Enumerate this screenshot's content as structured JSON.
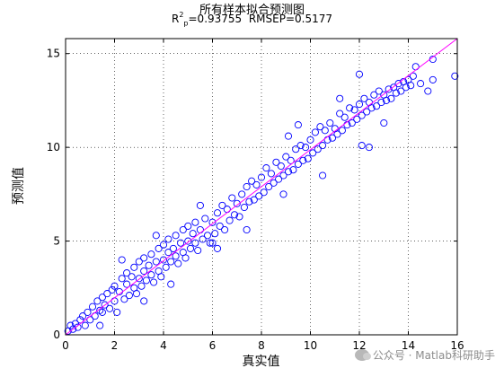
{
  "chart_data": {
    "type": "scatter",
    "title": "所有样本拟合预测图",
    "subtitle": {
      "r_label": "R",
      "r_sup": "2",
      "r_sub": "p",
      "r_value": "=0.93755",
      "rmsep": "RMSEP=0.5177"
    },
    "xlabel": "真实值",
    "ylabel": "预测值",
    "xlim": [
      0,
      16
    ],
    "ylim": [
      0,
      15.8
    ],
    "xticks": [
      0,
      2,
      4,
      6,
      8,
      10,
      12,
      14,
      16
    ],
    "yticks": [
      0,
      5,
      10,
      15
    ],
    "grid": true,
    "grid_style": "dotted",
    "marker": "open circle",
    "point_color": "#0000ff",
    "reference_line": {
      "from": [
        0,
        0
      ],
      "to": [
        16,
        15.8
      ],
      "color": "#ff00ff"
    },
    "series": [
      {
        "points": [
          [
            0.1,
            0.2
          ],
          [
            0.2,
            0.5
          ],
          [
            0.3,
            0.3
          ],
          [
            0.4,
            0.6
          ],
          [
            0.5,
            0.4
          ],
          [
            0.6,
            0.8
          ],
          [
            0.7,
            1.0
          ],
          [
            0.8,
            0.5
          ],
          [
            0.9,
            1.2
          ],
          [
            1.0,
            0.8
          ],
          [
            1.1,
            1.5
          ],
          [
            1.2,
            1.0
          ],
          [
            1.3,
            1.8
          ],
          [
            1.4,
            1.3
          ],
          [
            1.5,
            2.0
          ],
          [
            1.5,
            1.2
          ],
          [
            1.6,
            1.6
          ],
          [
            1.7,
            2.2
          ],
          [
            1.8,
            1.4
          ],
          [
            1.9,
            2.4
          ],
          [
            2.0,
            1.8
          ],
          [
            2.0,
            2.6
          ],
          [
            2.1,
            1.2
          ],
          [
            2.2,
            2.3
          ],
          [
            2.3,
            3.0
          ],
          [
            2.4,
            1.9
          ],
          [
            2.5,
            2.7
          ],
          [
            2.5,
            3.3
          ],
          [
            2.6,
            2.1
          ],
          [
            2.7,
            3.1
          ],
          [
            2.8,
            2.5
          ],
          [
            2.8,
            3.6
          ],
          [
            2.9,
            2.2
          ],
          [
            3.0,
            3.0
          ],
          [
            3.0,
            3.9
          ],
          [
            3.1,
            2.6
          ],
          [
            3.2,
            3.4
          ],
          [
            3.2,
            4.1
          ],
          [
            3.3,
            2.9
          ],
          [
            3.4,
            3.7
          ],
          [
            3.5,
            3.2
          ],
          [
            3.5,
            4.3
          ],
          [
            3.6,
            2.8
          ],
          [
            3.7,
            3.9
          ],
          [
            3.8,
            3.4
          ],
          [
            3.8,
            4.6
          ],
          [
            3.9,
            3.1
          ],
          [
            4.0,
            4.0
          ],
          [
            4.0,
            4.8
          ],
          [
            4.1,
            3.6
          ],
          [
            4.2,
            4.4
          ],
          [
            4.2,
            5.1
          ],
          [
            4.3,
            3.9
          ],
          [
            4.4,
            4.6
          ],
          [
            4.5,
            4.2
          ],
          [
            4.5,
            5.3
          ],
          [
            4.6,
            3.8
          ],
          [
            4.7,
            4.9
          ],
          [
            4.8,
            4.4
          ],
          [
            4.8,
            5.6
          ],
          [
            4.9,
            4.1
          ],
          [
            5.0,
            5.0
          ],
          [
            5.0,
            5.8
          ],
          [
            5.1,
            4.6
          ],
          [
            5.2,
            5.4
          ],
          [
            5.3,
            4.9
          ],
          [
            5.3,
            6.0
          ],
          [
            5.4,
            4.5
          ],
          [
            5.5,
            5.6
          ],
          [
            5.6,
            5.1
          ],
          [
            5.7,
            6.2
          ],
          [
            5.8,
            5.3
          ],
          [
            5.9,
            4.9
          ],
          [
            6.0,
            6.0
          ],
          [
            6.1,
            5.4
          ],
          [
            6.2,
            6.5
          ],
          [
            6.3,
            5.8
          ],
          [
            6.4,
            6.9
          ],
          [
            6.5,
            5.6
          ],
          [
            6.6,
            6.7
          ],
          [
            6.7,
            6.1
          ],
          [
            6.8,
            7.3
          ],
          [
            6.9,
            6.4
          ],
          [
            7.0,
            7.0
          ],
          [
            7.1,
            6.3
          ],
          [
            7.2,
            7.5
          ],
          [
            7.3,
            6.8
          ],
          [
            7.4,
            7.9
          ],
          [
            7.5,
            7.1
          ],
          [
            7.6,
            8.2
          ],
          [
            7.7,
            7.2
          ],
          [
            7.8,
            8.0
          ],
          [
            7.9,
            7.4
          ],
          [
            8.0,
            8.4
          ],
          [
            8.1,
            7.6
          ],
          [
            8.2,
            8.9
          ],
          [
            8.3,
            7.9
          ],
          [
            8.4,
            8.6
          ],
          [
            8.5,
            8.1
          ],
          [
            8.6,
            9.2
          ],
          [
            8.7,
            8.3
          ],
          [
            8.8,
            9.0
          ],
          [
            8.9,
            8.5
          ],
          [
            9.0,
            9.5
          ],
          [
            9.1,
            8.7
          ],
          [
            9.2,
            9.3
          ],
          [
            9.3,
            8.8
          ],
          [
            9.4,
            9.9
          ],
          [
            9.5,
            9.1
          ],
          [
            9.6,
            10.1
          ],
          [
            9.7,
            9.3
          ],
          [
            9.8,
            10.0
          ],
          [
            9.9,
            9.4
          ],
          [
            10.0,
            10.4
          ],
          [
            10.1,
            9.7
          ],
          [
            10.2,
            10.8
          ],
          [
            10.3,
            9.9
          ],
          [
            10.4,
            11.1
          ],
          [
            10.5,
            10.1
          ],
          [
            10.6,
            10.9
          ],
          [
            10.7,
            10.4
          ],
          [
            10.8,
            11.3
          ],
          [
            10.9,
            10.5
          ],
          [
            11.0,
            11.0
          ],
          [
            11.1,
            10.7
          ],
          [
            11.2,
            11.8
          ],
          [
            11.3,
            10.9
          ],
          [
            11.4,
            11.6
          ],
          [
            11.5,
            11.2
          ],
          [
            11.6,
            12.1
          ],
          [
            11.7,
            11.3
          ],
          [
            11.8,
            12.0
          ],
          [
            11.9,
            11.5
          ],
          [
            12.0,
            12.3
          ],
          [
            12.1,
            11.7
          ],
          [
            12.2,
            12.6
          ],
          [
            12.3,
            11.9
          ],
          [
            12.4,
            12.4
          ],
          [
            12.5,
            12.1
          ],
          [
            12.6,
            12.8
          ],
          [
            12.7,
            12.2
          ],
          [
            12.8,
            13.0
          ],
          [
            12.9,
            12.4
          ],
          [
            13.0,
            12.8
          ],
          [
            13.1,
            12.5
          ],
          [
            13.2,
            13.1
          ],
          [
            13.3,
            12.6
          ],
          [
            13.4,
            13.2
          ],
          [
            13.5,
            12.9
          ],
          [
            13.6,
            13.4
          ],
          [
            13.7,
            13.0
          ],
          [
            13.8,
            13.5
          ],
          [
            13.9,
            13.2
          ],
          [
            14.0,
            13.6
          ],
          [
            14.1,
            13.3
          ],
          [
            14.2,
            13.8
          ],
          [
            14.5,
            13.4
          ],
          [
            14.8,
            13.0
          ],
          [
            15.0,
            13.6
          ],
          [
            15.9,
            13.8
          ],
          [
            2.3,
            4.0
          ],
          [
            3.2,
            1.8
          ],
          [
            4.3,
            2.7
          ],
          [
            5.5,
            6.9
          ],
          [
            6.2,
            4.6
          ],
          [
            7.4,
            5.6
          ],
          [
            9.1,
            10.6
          ],
          [
            10.5,
            8.5
          ],
          [
            11.2,
            12.6
          ],
          [
            12.1,
            10.1
          ],
          [
            12.4,
            10.0
          ],
          [
            12.0,
            13.9
          ],
          [
            14.3,
            14.3
          ],
          [
            15.0,
            14.7
          ],
          [
            13.0,
            11.3
          ],
          [
            9.5,
            11.2
          ],
          [
            6.0,
            4.9
          ],
          [
            8.9,
            7.5
          ],
          [
            3.7,
            5.3
          ],
          [
            1.4,
            0.5
          ]
        ]
      }
    ]
  },
  "watermark": {
    "text": "公众号 · Matlab科研助手"
  }
}
